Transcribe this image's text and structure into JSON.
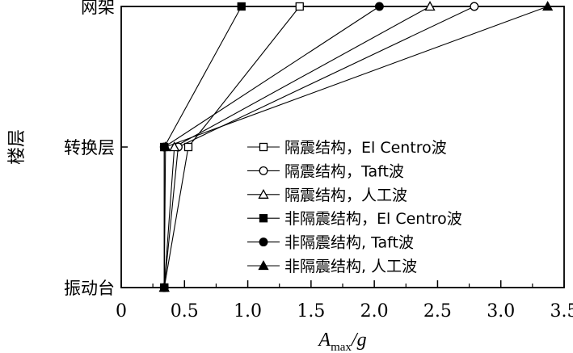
{
  "chart_data": {
    "type": "line",
    "xlabel": "A",
    "xlabel_subscript": "max",
    "xlabel_suffix": "/g",
    "ylabel": "楼层",
    "xlim": [
      0,
      3.5
    ],
    "xticks": [
      "0",
      "0.5",
      "1.0",
      "1.5",
      "2.0",
      "2.5",
      "3.0",
      "3.5"
    ],
    "categories": [
      "振动台",
      "转换层",
      "网架"
    ],
    "legend_position": "lower-right",
    "grid": false,
    "series": [
      {
        "name": "隔震结构，El Centro波",
        "marker": "square-open",
        "x": [
          0.34,
          0.53,
          1.41
        ]
      },
      {
        "name": "隔震结构，Taft波",
        "marker": "circle-open",
        "x": [
          0.34,
          0.45,
          2.79
        ]
      },
      {
        "name": "隔震结构，人工波",
        "marker": "triangle-open",
        "x": [
          0.34,
          0.42,
          2.44
        ]
      },
      {
        "name": "非隔震结构，El Centro波",
        "marker": "square-filled",
        "x": [
          0.34,
          0.34,
          0.95
        ]
      },
      {
        "name": "非隔震结构, Taft波",
        "marker": "circle-filled",
        "x": [
          0.34,
          0.34,
          2.04
        ]
      },
      {
        "name": "非隔震结构, 人工波",
        "marker": "triangle-filled",
        "x": [
          0.34,
          0.35,
          3.37
        ]
      }
    ]
  }
}
